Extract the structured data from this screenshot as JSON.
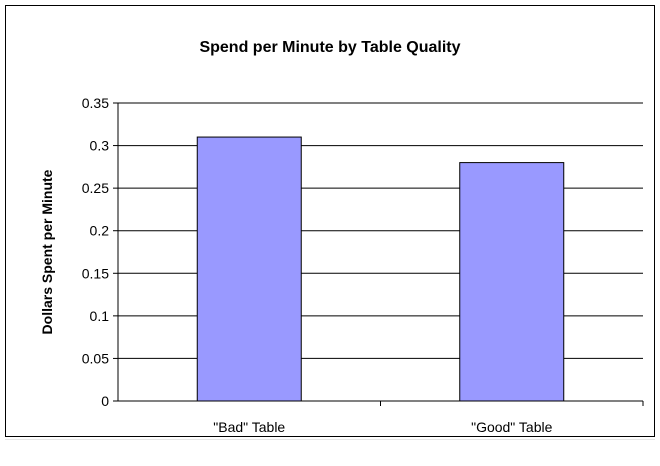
{
  "chart_data": {
    "type": "bar",
    "title": "Spend per Minute by Table Quality",
    "xlabel": "",
    "ylabel": "Dollars Spent per Minute",
    "categories": [
      "\"Bad\" Table",
      "\"Good\" Table"
    ],
    "values": [
      0.31,
      0.28
    ],
    "ylim": [
      0,
      0.35
    ],
    "yticks": [
      0,
      0.05,
      0.1,
      0.15,
      0.2,
      0.25,
      0.3,
      0.35
    ],
    "ytick_labels": [
      "0",
      "0.05",
      "0.1",
      "0.15",
      "0.2",
      "0.25",
      "0.3",
      "0.35"
    ],
    "grid": true,
    "legend": "none",
    "colors": {
      "bar_fill": "#9999ff",
      "bar_stroke": "#000000",
      "grid": "#000000"
    }
  }
}
